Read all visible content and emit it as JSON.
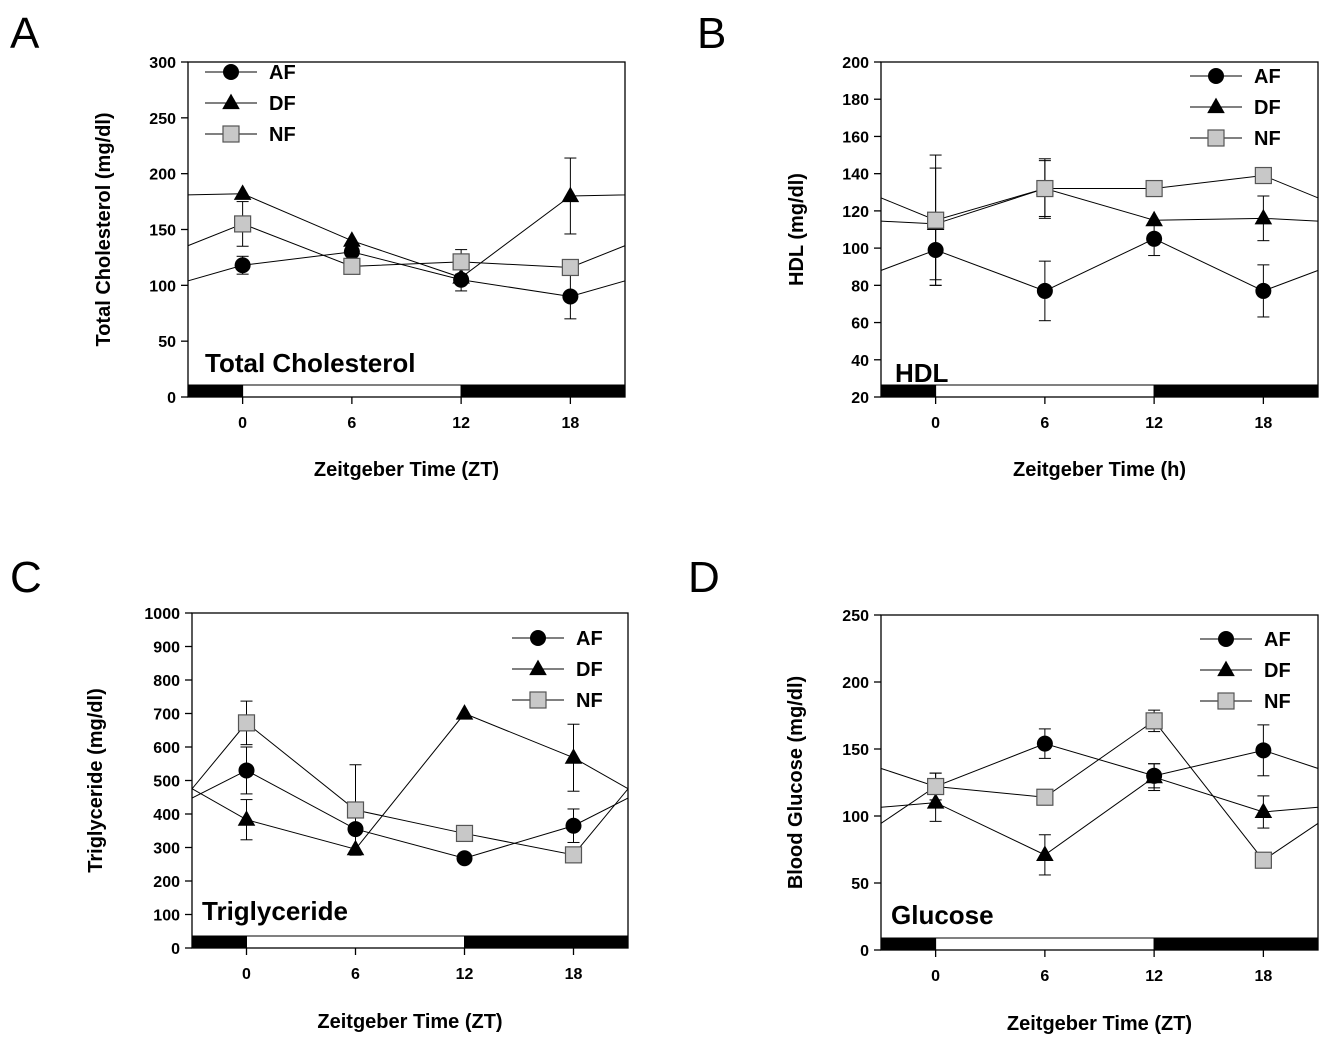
{
  "colors": {
    "ink": "#000000",
    "nf_fill": "#c8c8c8",
    "nf_stroke": "#555555",
    "background": "#ffffff"
  },
  "chart_data": [
    {
      "id": "A",
      "type": "line",
      "panel_letter": "A",
      "panel_label": "Total Cholesterol",
      "xlabel": "Zeitgeber Time (ZT)",
      "ylabel": "Total Cholesterol (mg/dl)",
      "xlim": [
        -3,
        21
      ],
      "ylim": [
        0,
        300
      ],
      "xticks": [
        "0",
        "6",
        "12",
        "18"
      ],
      "xtick_values": [
        0,
        6,
        12,
        18
      ],
      "yticks": [
        "0",
        "50",
        "100",
        "150",
        "200",
        "250",
        "300"
      ],
      "ytick_values": [
        0,
        50,
        100,
        150,
        200,
        250,
        300
      ],
      "legend_position": "top-left",
      "light_dark_bar": [
        {
          "from": -3,
          "to": 0,
          "dark": true
        },
        {
          "from": 0,
          "to": 12,
          "dark": false
        },
        {
          "from": 12,
          "to": 21,
          "dark": true
        }
      ],
      "x": [
        0,
        6,
        12,
        18
      ],
      "series": [
        {
          "name": "AF",
          "marker": "circle",
          "values": [
            118,
            130,
            105,
            90
          ],
          "errors": [
            8,
            8,
            10,
            20
          ]
        },
        {
          "name": "DF",
          "marker": "triangle",
          "values": [
            182,
            140,
            107,
            180
          ],
          "errors": [
            0,
            0,
            0,
            34
          ]
        },
        {
          "name": "NF",
          "marker": "square",
          "values": [
            155,
            117,
            121,
            116
          ],
          "errors": [
            20,
            0,
            11,
            0
          ]
        }
      ]
    },
    {
      "id": "B",
      "type": "line",
      "panel_letter": "B",
      "panel_label": "HDL",
      "xlabel": "Zeitgeber Time (h)",
      "ylabel": "HDL (mg/dl)",
      "xlim": [
        -3,
        21
      ],
      "ylim": [
        20,
        200
      ],
      "xticks": [
        "0",
        "6",
        "12",
        "18"
      ],
      "xtick_values": [
        0,
        6,
        12,
        18
      ],
      "yticks": [
        "20",
        "40",
        "60",
        "80",
        "100",
        "120",
        "140",
        "160",
        "180",
        "200"
      ],
      "ytick_values": [
        20,
        40,
        60,
        80,
        100,
        120,
        140,
        160,
        180,
        200
      ],
      "legend_position": "top-right",
      "light_dark_bar": [
        {
          "from": -3,
          "to": 0,
          "dark": true
        },
        {
          "from": 0,
          "to": 12,
          "dark": false
        },
        {
          "from": 12,
          "to": 21,
          "dark": true
        }
      ],
      "x": [
        0,
        6,
        12,
        18
      ],
      "series": [
        {
          "name": "AF",
          "marker": "circle",
          "values": [
            99,
            77,
            105,
            77
          ],
          "errors": [
            19,
            16,
            9,
            14
          ]
        },
        {
          "name": "DF",
          "marker": "triangle",
          "values": [
            113,
            132,
            115,
            116
          ],
          "errors": [
            30,
            16,
            0,
            12
          ]
        },
        {
          "name": "NF",
          "marker": "square",
          "values": [
            115,
            132,
            132,
            139
          ],
          "errors": [
            35,
            15,
            0,
            4
          ]
        }
      ]
    },
    {
      "id": "C",
      "type": "line",
      "panel_letter": "C",
      "panel_label": "Triglyceride",
      "xlabel": "Zeitgeber Time (ZT)",
      "ylabel": "Triglyceride (mg/dl)",
      "xlim": [
        -3,
        21
      ],
      "ylim": [
        0,
        1000
      ],
      "xticks": [
        "0",
        "6",
        "12",
        "18"
      ],
      "xtick_values": [
        0,
        6,
        12,
        18
      ],
      "yticks": [
        "0",
        "100",
        "200",
        "300",
        "400",
        "500",
        "600",
        "700",
        "800",
        "900",
        "1000"
      ],
      "ytick_values": [
        0,
        100,
        200,
        300,
        400,
        500,
        600,
        700,
        800,
        900,
        1000
      ],
      "legend_position": "top-right",
      "light_dark_bar": [
        {
          "from": -3,
          "to": 0,
          "dark": true
        },
        {
          "from": 0,
          "to": 12,
          "dark": false
        },
        {
          "from": 12,
          "to": 21,
          "dark": true
        }
      ],
      "x": [
        0,
        6,
        12,
        18
      ],
      "series": [
        {
          "name": "AF",
          "marker": "circle",
          "values": [
            530,
            355,
            268,
            365
          ],
          "errors": [
            70,
            0,
            0,
            50
          ]
        },
        {
          "name": "DF",
          "marker": "triangle",
          "values": [
            383,
            295,
            700,
            568
          ],
          "errors": [
            60,
            0,
            0,
            100
          ]
        },
        {
          "name": "NF",
          "marker": "square",
          "values": [
            672,
            412,
            342,
            278
          ],
          "errors": [
            65,
            135,
            0,
            0
          ]
        }
      ]
    },
    {
      "id": "D",
      "type": "line",
      "panel_letter": "D",
      "panel_label": "Glucose",
      "xlabel": "Zeitgeber Time (ZT)",
      "ylabel": "Blood Glucose (mg/dl)",
      "xlim": [
        -3,
        21
      ],
      "ylim": [
        0,
        250
      ],
      "xticks": [
        "0",
        "6",
        "12",
        "18"
      ],
      "xtick_values": [
        0,
        6,
        12,
        18
      ],
      "yticks": [
        "0",
        "50",
        "100",
        "150",
        "200",
        "250"
      ],
      "ytick_values": [
        0,
        50,
        100,
        150,
        200,
        250
      ],
      "legend_position": "top-right",
      "light_dark_bar": [
        {
          "from": -3,
          "to": 0,
          "dark": true
        },
        {
          "from": 0,
          "to": 12,
          "dark": false
        },
        {
          "from": 12,
          "to": 21,
          "dark": true
        }
      ],
      "x": [
        0,
        6,
        12,
        18
      ],
      "series": [
        {
          "name": "AF",
          "marker": "circle",
          "values": [
            122,
            154,
            130,
            149
          ],
          "errors": [
            10,
            11,
            9,
            19
          ]
        },
        {
          "name": "DF",
          "marker": "triangle",
          "values": [
            110,
            71,
            129,
            103
          ],
          "errors": [
            14,
            15,
            10,
            12
          ]
        },
        {
          "name": "NF",
          "marker": "square",
          "values": [
            122,
            114,
            171,
            67
          ],
          "errors": [
            10,
            0,
            8,
            5
          ]
        }
      ]
    }
  ]
}
